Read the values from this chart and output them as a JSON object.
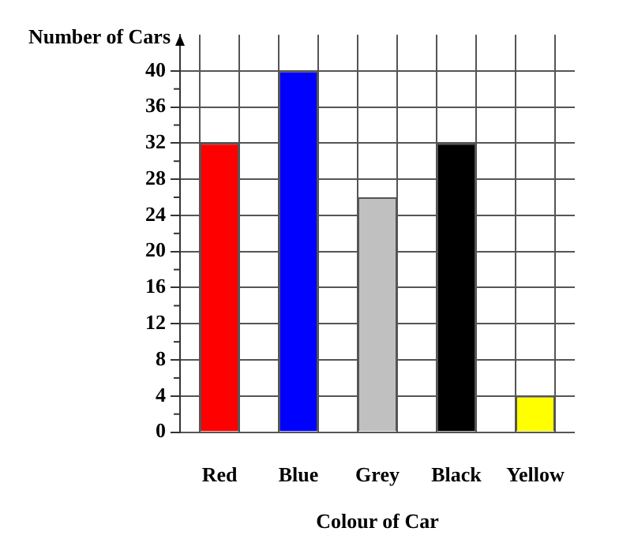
{
  "chart_data": {
    "type": "bar",
    "xlabel": "Colour of Car",
    "ylabel": "Number of Cars",
    "categories": [
      "Red",
      "Blue",
      "Grey",
      "Black",
      "Yellow"
    ],
    "values": [
      32,
      40,
      26,
      32,
      4
    ],
    "colors": [
      "#ff0000",
      "#0000ff",
      "#c0c0c0",
      "#000000",
      "#ffff00"
    ],
    "ylim": [
      0,
      44
    ],
    "yticks": [
      0,
      4,
      8,
      12,
      16,
      20,
      24,
      28,
      32,
      36,
      40
    ],
    "grid": true,
    "legend": false
  }
}
